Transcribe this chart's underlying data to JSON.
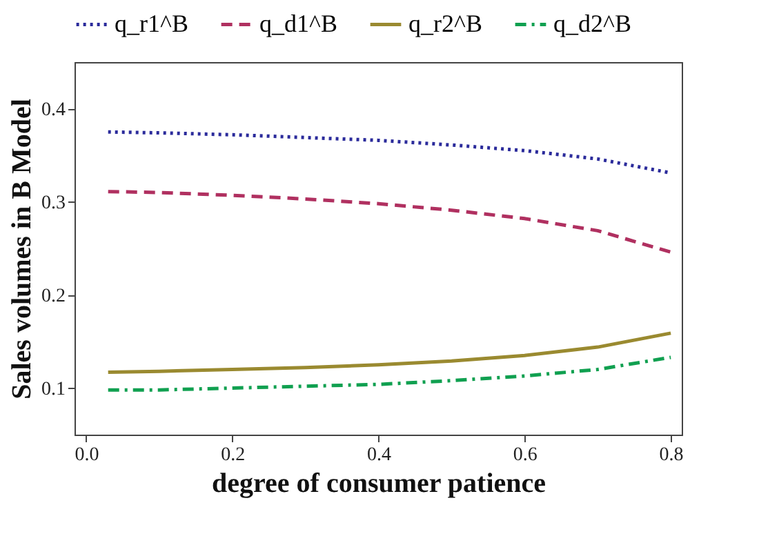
{
  "chart_data": {
    "type": "line",
    "xlabel": "degree of consumer patience",
    "ylabel": "Sales volumes in B Model",
    "x": [
      0.03,
      0.1,
      0.2,
      0.3,
      0.4,
      0.5,
      0.6,
      0.7,
      0.8
    ],
    "series": [
      {
        "name": "q_r1^B",
        "color": "#2b2b9b",
        "line_style": "dotted",
        "values": [
          0.375,
          0.374,
          0.372,
          0.369,
          0.366,
          0.361,
          0.355,
          0.346,
          0.331
        ]
      },
      {
        "name": "q_d1^B",
        "color": "#b03060",
        "line_style": "dashed",
        "values": [
          0.311,
          0.31,
          0.307,
          0.303,
          0.298,
          0.291,
          0.282,
          0.269,
          0.246
        ]
      },
      {
        "name": "q_r2^B",
        "color": "#9a8a30",
        "line_style": "solid",
        "values": [
          0.117,
          0.118,
          0.12,
          0.122,
          0.125,
          0.129,
          0.135,
          0.144,
          0.159
        ]
      },
      {
        "name": "q_d2^B",
        "color": "#10a050",
        "line_style": "dashdot",
        "values": [
          0.098,
          0.098,
          0.1,
          0.102,
          0.104,
          0.108,
          0.113,
          0.12,
          0.133
        ]
      }
    ],
    "xlim": [
      -0.016,
      0.815
    ],
    "xticks": [
      {
        "value": 0,
        "label": "0.0"
      },
      0.2,
      0.4,
      0.6,
      0.8
    ],
    "ylim": [
      0.05,
      0.45
    ],
    "yticks": [
      0.1,
      0.2,
      0.3,
      0.4
    ],
    "grid": false,
    "legend": "top",
    "marker": "none"
  }
}
